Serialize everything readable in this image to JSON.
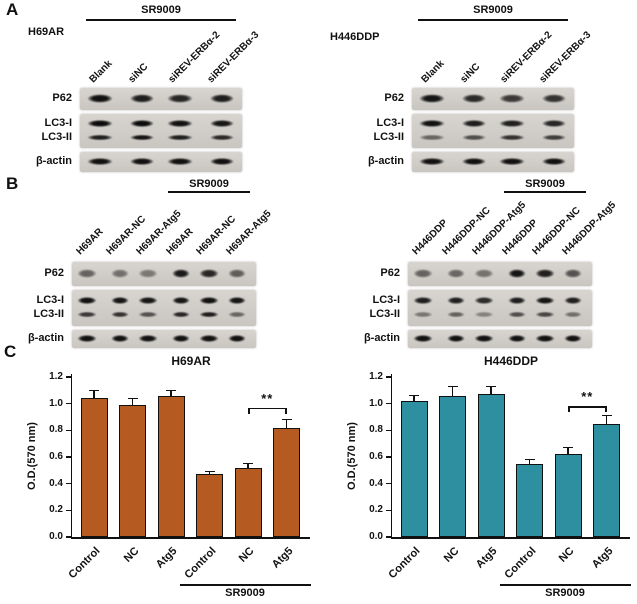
{
  "panels": {
    "a": "A",
    "b": "B",
    "c": "C"
  },
  "blots": [
    {
      "id": "a-left",
      "cell_line": "H69AR",
      "treatment": "SR9009",
      "treatment_span": [
        0,
        3
      ],
      "lanes": [
        "Blank",
        "siNC",
        "siREV-ERBα-2",
        "siREV-ERBα-3"
      ],
      "rows": [
        {
          "label": "P62",
          "intensities": [
            0.92,
            0.86,
            0.82,
            0.86
          ]
        },
        {
          "label": "LC3-I",
          "intensities": [
            0.95,
            0.95,
            0.92,
            0.9
          ]
        },
        {
          "label": "LC3-II",
          "intensities": [
            0.85,
            0.9,
            0.85,
            0.8
          ]
        },
        {
          "label": "β-actin",
          "intensities": [
            0.92,
            0.92,
            0.92,
            0.92
          ]
        }
      ]
    },
    {
      "id": "a-right",
      "cell_line": "H446DDP",
      "treatment": "SR9009",
      "treatment_span": [
        0,
        3
      ],
      "lanes": [
        "Blank",
        "siNC",
        "siREV-ERBα-2",
        "siREV-ERBα-3"
      ],
      "rows": [
        {
          "label": "P62",
          "intensities": [
            0.9,
            0.8,
            0.72,
            0.76
          ]
        },
        {
          "label": "LC3-I",
          "intensities": [
            0.92,
            0.86,
            0.85,
            0.82
          ]
        },
        {
          "label": "LC3-II",
          "intensities": [
            0.5,
            0.62,
            0.76,
            0.7
          ]
        },
        {
          "label": "β-actin",
          "intensities": [
            0.92,
            0.92,
            0.92,
            0.92
          ]
        }
      ]
    },
    {
      "id": "b-left",
      "cell_line": "",
      "treatment": "SR9009",
      "treatment_span": [
        3,
        5
      ],
      "lanes": [
        "H69AR",
        "H69AR-NC",
        "H69AR-Atg5",
        "H69AR",
        "H69AR-NC",
        "H69AR-Atg5"
      ],
      "rows": [
        {
          "label": "P62",
          "intensities": [
            0.52,
            0.46,
            0.42,
            0.88,
            0.82,
            0.55
          ]
        },
        {
          "label": "LC3-I",
          "intensities": [
            0.92,
            0.9,
            0.9,
            0.9,
            0.92,
            0.9
          ]
        },
        {
          "label": "LC3-II",
          "intensities": [
            0.72,
            0.76,
            0.6,
            0.82,
            0.86,
            0.5
          ]
        },
        {
          "label": "β-actin",
          "intensities": [
            0.92,
            0.92,
            0.92,
            0.92,
            0.92,
            0.92
          ]
        }
      ]
    },
    {
      "id": "b-right",
      "cell_line": "",
      "treatment": "SR9009",
      "treatment_span": [
        3,
        5
      ],
      "lanes": [
        "H446DDP",
        "H446DDP-NC",
        "H446DDP-Atg5",
        "H446DDP",
        "H446DDP-NC",
        "H446DDP-Atg5"
      ],
      "rows": [
        {
          "label": "P62",
          "intensities": [
            0.52,
            0.5,
            0.45,
            0.9,
            0.85,
            0.6
          ]
        },
        {
          "label": "LC3-I",
          "intensities": [
            0.86,
            0.85,
            0.8,
            0.86,
            0.9,
            0.85
          ]
        },
        {
          "label": "LC3-II",
          "intensities": [
            0.42,
            0.52,
            0.36,
            0.62,
            0.66,
            0.46
          ]
        },
        {
          "label": "β-actin",
          "intensities": [
            0.92,
            0.92,
            0.92,
            0.92,
            0.92,
            0.92
          ]
        }
      ]
    }
  ],
  "chart_data": [
    {
      "type": "bar",
      "title": "H69AR",
      "ylabel": "O.D.(570 nm)",
      "ylim": [
        0,
        1.2
      ],
      "yticks": [
        0,
        0.2,
        0.4,
        0.6,
        0.8,
        1.0,
        1.2
      ],
      "categories": [
        "Control",
        "NC",
        "Atg5",
        "Control",
        "NC",
        "Atg5"
      ],
      "values": [
        1.04,
        0.99,
        1.06,
        0.47,
        0.52,
        0.82
      ],
      "errors": [
        0.06,
        0.05,
        0.04,
        0.02,
        0.03,
        0.06
      ],
      "bar_color": "#b55a20",
      "grid": false,
      "legend_position": "none",
      "group_label": "SR9009",
      "group_span": [
        3,
        5
      ],
      "significance": {
        "label": "**",
        "between": [
          4,
          5
        ],
        "at": 0.97
      }
    },
    {
      "type": "bar",
      "title": "H446DDP",
      "ylabel": "O.D.(570 nm)",
      "ylim": [
        0,
        1.2
      ],
      "yticks": [
        0,
        0.2,
        0.4,
        0.6,
        0.8,
        1.0,
        1.2
      ],
      "categories": [
        "Control",
        "NC",
        "Atg5",
        "Control",
        "NC",
        "Atg5"
      ],
      "values": [
        1.02,
        1.06,
        1.07,
        0.55,
        0.62,
        0.85
      ],
      "errors": [
        0.04,
        0.07,
        0.06,
        0.03,
        0.05,
        0.06
      ],
      "bar_color": "#2e8fa0",
      "grid": false,
      "legend_position": "none",
      "group_label": "SR9009",
      "group_span": [
        3,
        5
      ],
      "significance": {
        "label": "**",
        "between": [
          4,
          5
        ],
        "at": 0.98
      }
    }
  ]
}
